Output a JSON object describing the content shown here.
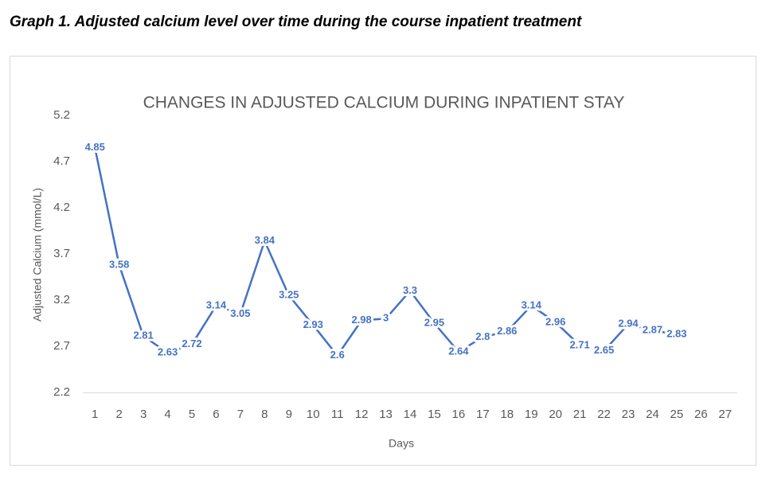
{
  "caption": "Graph 1. Adjusted calcium level over time during the course inpatient treatment",
  "chart_data": {
    "type": "line",
    "title": "CHANGES IN ADJUSTED CALCIUM DURING INPATIENT STAY",
    "x_label": "Days",
    "y_label": "Adjusted  Calcium (mmol/L)",
    "categories": [
      "1",
      "2",
      "3",
      "4",
      "5",
      "6",
      "7",
      "8",
      "9",
      "10",
      "11",
      "12",
      "13",
      "14",
      "15",
      "16",
      "17",
      "18",
      "19",
      "20",
      "21",
      "22",
      "23",
      "24",
      "25",
      "26",
      "27"
    ],
    "values": [
      4.85,
      3.58,
      2.81,
      2.63,
      2.72,
      3.14,
      3.05,
      3.84,
      3.25,
      2.93,
      2.6,
      2.98,
      3,
      3.3,
      2.95,
      2.64,
      2.8,
      2.86,
      3.14,
      2.96,
      2.71,
      2.65,
      2.94,
      2.87,
      2.83,
      null,
      null
    ],
    "color": "#4472c4",
    "ylim": [
      2.2,
      5.2
    ],
    "yticks": [
      2.2,
      2.7,
      3.2,
      3.7,
      4.2,
      4.7,
      5.2
    ],
    "data_labels": true
  }
}
